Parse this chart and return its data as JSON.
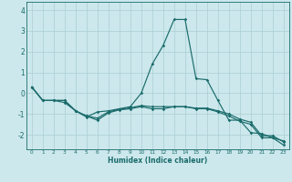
{
  "xlabel": "Humidex (Indice chaleur)",
  "background_color": "#cce8ec",
  "grid_color": "#aacdd4",
  "line_color": "#1a6b6b",
  "xlim": [
    -0.5,
    23.5
  ],
  "ylim": [
    -2.7,
    4.4
  ],
  "yticks": [
    -2,
    -1,
    0,
    1,
    2,
    3,
    4
  ],
  "xticks": [
    0,
    1,
    2,
    3,
    4,
    5,
    6,
    7,
    8,
    9,
    10,
    11,
    12,
    13,
    14,
    15,
    16,
    17,
    18,
    19,
    20,
    21,
    22,
    23
  ],
  "y_spike": [
    0.3,
    -0.35,
    -0.35,
    -0.35,
    -0.85,
    -1.15,
    -0.9,
    -0.85,
    -0.75,
    -0.65,
    -0.0,
    1.4,
    2.3,
    3.55,
    3.55,
    0.7,
    0.65,
    -0.35,
    -1.3,
    -1.3,
    -1.9,
    -1.95,
    -2.15,
    -2.3
  ],
  "y_mid": [
    0.3,
    -0.35,
    -0.35,
    -0.35,
    -0.85,
    -1.1,
    -1.2,
    -0.9,
    -0.78,
    -0.7,
    -0.6,
    -0.65,
    -0.65,
    -0.65,
    -0.65,
    -0.72,
    -0.72,
    -0.85,
    -1.0,
    -1.25,
    -1.4,
    -2.05,
    -2.05,
    -2.35
  ],
  "y_low": [
    0.3,
    -0.35,
    -0.35,
    -0.45,
    -0.85,
    -1.1,
    -1.3,
    -0.95,
    -0.8,
    -0.75,
    -0.65,
    -0.75,
    -0.75,
    -0.65,
    -0.65,
    -0.75,
    -0.75,
    -0.9,
    -1.1,
    -1.35,
    -1.5,
    -2.15,
    -2.15,
    -2.5
  ]
}
